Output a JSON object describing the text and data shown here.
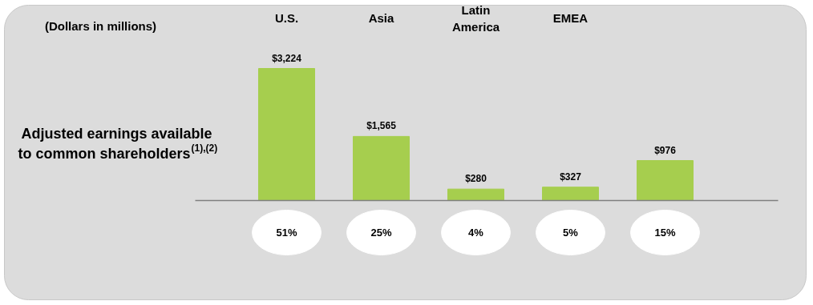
{
  "chart_data": {
    "type": "bar",
    "categories": [
      "U.S.",
      "Asia",
      "Latin America",
      "EMEA",
      null
    ],
    "values": [
      3224,
      1565,
      280,
      327,
      976
    ],
    "value_labels": [
      "$3,224",
      "$1,565",
      "$280",
      "$327",
      "$976"
    ],
    "color": "#a6ce4e",
    "ylabel": "Adjusted earnings available to common shareholders$^{(1),(2)}$",
    "annotations": [
      "(Dollars in millions)",
      "51%",
      "25%",
      "4%",
      "5%",
      "15%"
    ],
    "grid": false
  }
}
